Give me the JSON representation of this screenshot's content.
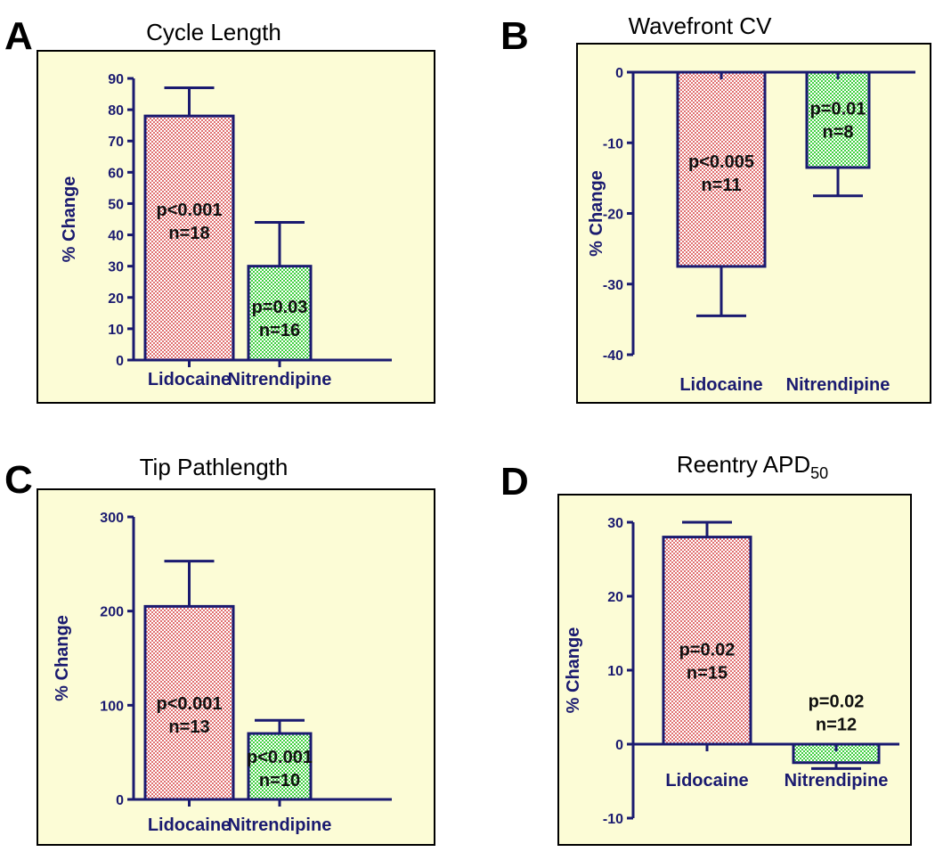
{
  "colors": {
    "panel_bg": "#fcfcd6",
    "axis": "#1a1a70",
    "bar_outline": "#1a1a70",
    "lidocaine_pattern": "#e07070",
    "nitrendipine_pattern": "#40d040"
  },
  "chart_data": [
    {
      "letter": "A",
      "type": "bar",
      "title": "Cycle Length",
      "title_sub": "",
      "ylabel": "% Change",
      "ylim": [
        0,
        90
      ],
      "yticks": [
        0,
        10,
        20,
        30,
        40,
        50,
        60,
        70,
        80,
        90
      ],
      "categories": [
        "Lidocaine",
        "Nitrendipine"
      ],
      "values": [
        78,
        30
      ],
      "errors": [
        9,
        14
      ],
      "annotations": [
        {
          "line1": "p<0.001",
          "line2": "n=18",
          "value": 45
        },
        {
          "line1": "p=0.03",
          "line2": "n=16",
          "value": 14
        }
      ]
    },
    {
      "letter": "B",
      "type": "bar",
      "title": "Wavefront CV",
      "title_sub": "",
      "ylabel": "% Change",
      "ylim": [
        -40,
        0
      ],
      "yticks": [
        -40,
        -30,
        -20,
        -10,
        0
      ],
      "categories": [
        "Lidocaine",
        "Nitrendipine"
      ],
      "values": [
        -27.5,
        -13.5
      ],
      "errors": [
        7,
        4
      ],
      "annotations": [
        {
          "line1": "p<0.005",
          "line2": "n=11",
          "value": -14
        },
        {
          "line1": "p=0.01",
          "line2": "n=8",
          "value": -6.5
        }
      ]
    },
    {
      "letter": "C",
      "type": "bar",
      "title": "Tip Pathlength",
      "title_sub": "",
      "ylabel": "% Change",
      "ylim": [
        0,
        300
      ],
      "yticks": [
        0,
        100,
        200,
        300
      ],
      "categories": [
        "Lidocaine",
        "Nitrendipine"
      ],
      "values": [
        205,
        70
      ],
      "errors": [
        48,
        14
      ],
      "annotations": [
        {
          "line1": "p<0.001",
          "line2": "n=13",
          "value": 92
        },
        {
          "line1": "p<0.001",
          "line2": "n=10",
          "value": 35
        }
      ]
    },
    {
      "letter": "D",
      "type": "bar",
      "title": "Reentry APD",
      "title_sub": "50",
      "ylabel": "% Change",
      "ylim": [
        -10,
        30
      ],
      "yticks": [
        -10,
        0,
        10,
        20,
        30
      ],
      "categories": [
        "Lidocaine",
        "Nitrendipine"
      ],
      "values": [
        28,
        -2.5
      ],
      "errors": [
        2,
        0.8
      ],
      "annotations": [
        {
          "line1": "p=0.02",
          "line2": "n=15",
          "value": 11.5
        },
        {
          "line1": "p=0.02",
          "line2": "n=12",
          "value": 4.5
        }
      ]
    }
  ]
}
